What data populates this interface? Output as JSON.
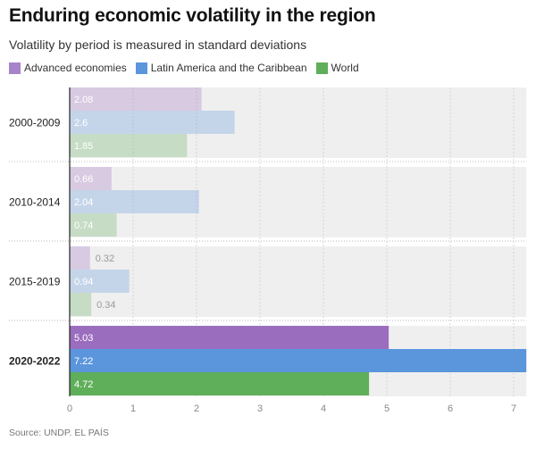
{
  "title": "Enduring economic volatility in the region",
  "subtitle": "Volatility by period is measured in standard deviations",
  "source": "Source: UNDP. EL PAÍS",
  "chart_data": {
    "type": "bar",
    "orientation": "horizontal",
    "categories": [
      "2000-2009",
      "2010-2014",
      "2015-2019",
      "2020-2022"
    ],
    "highlighted_category": "2020-2022",
    "series": [
      {
        "name": "Advanced economies",
        "color": "#9b6dbf",
        "values": [
          2.08,
          0.66,
          0.32,
          5.03
        ]
      },
      {
        "name": "Latin America and the Caribbean",
        "color": "#5b95dc",
        "values": [
          2.6,
          2.04,
          0.94,
          7.22
        ]
      },
      {
        "name": "World",
        "color": "#5fae5a",
        "values": [
          1.85,
          0.74,
          0.34,
          4.72
        ]
      }
    ],
    "x_ticks": [
      "0",
      "1",
      "2",
      "3",
      "4",
      "5",
      "6",
      "7"
    ],
    "xlim": [
      0,
      7.2
    ],
    "grid": true,
    "legend_position": "top-left"
  }
}
